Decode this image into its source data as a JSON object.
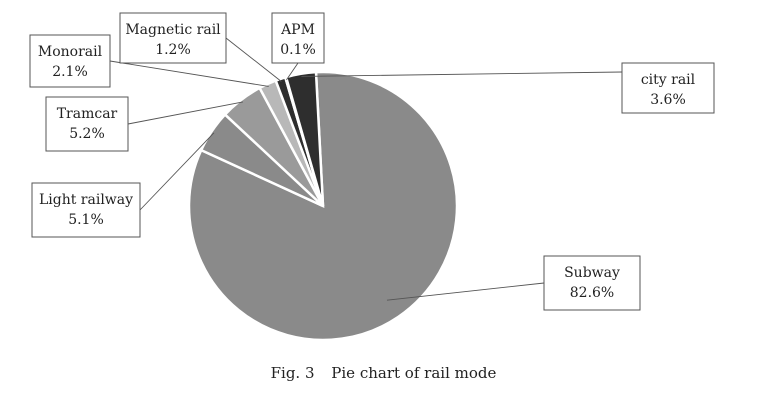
{
  "caption": {
    "prefix": "Fig. 3",
    "text": "Pie chart of rail mode"
  },
  "chart_data": {
    "type": "pie",
    "title": "",
    "categories": [
      "Subway",
      "Light railway",
      "Tramcar",
      "Monorail",
      "Magnetic rail",
      "APM",
      "city rail"
    ],
    "values": [
      82.6,
      5.1,
      5.2,
      2.1,
      1.2,
      0.1,
      3.6
    ],
    "labels": [
      "82.6%",
      "5.1%",
      "5.2%",
      "2.1%",
      "1.2%",
      "0.1%",
      "3.6%"
    ],
    "colors": [
      "#8a8a8a",
      "#8a8a8a",
      "#9a9a9a",
      "#b8b8b8",
      "#2e2e2e",
      "#ffffff",
      "#2e2e2e"
    ],
    "legend": "none",
    "label_style": "callout-boxes"
  }
}
